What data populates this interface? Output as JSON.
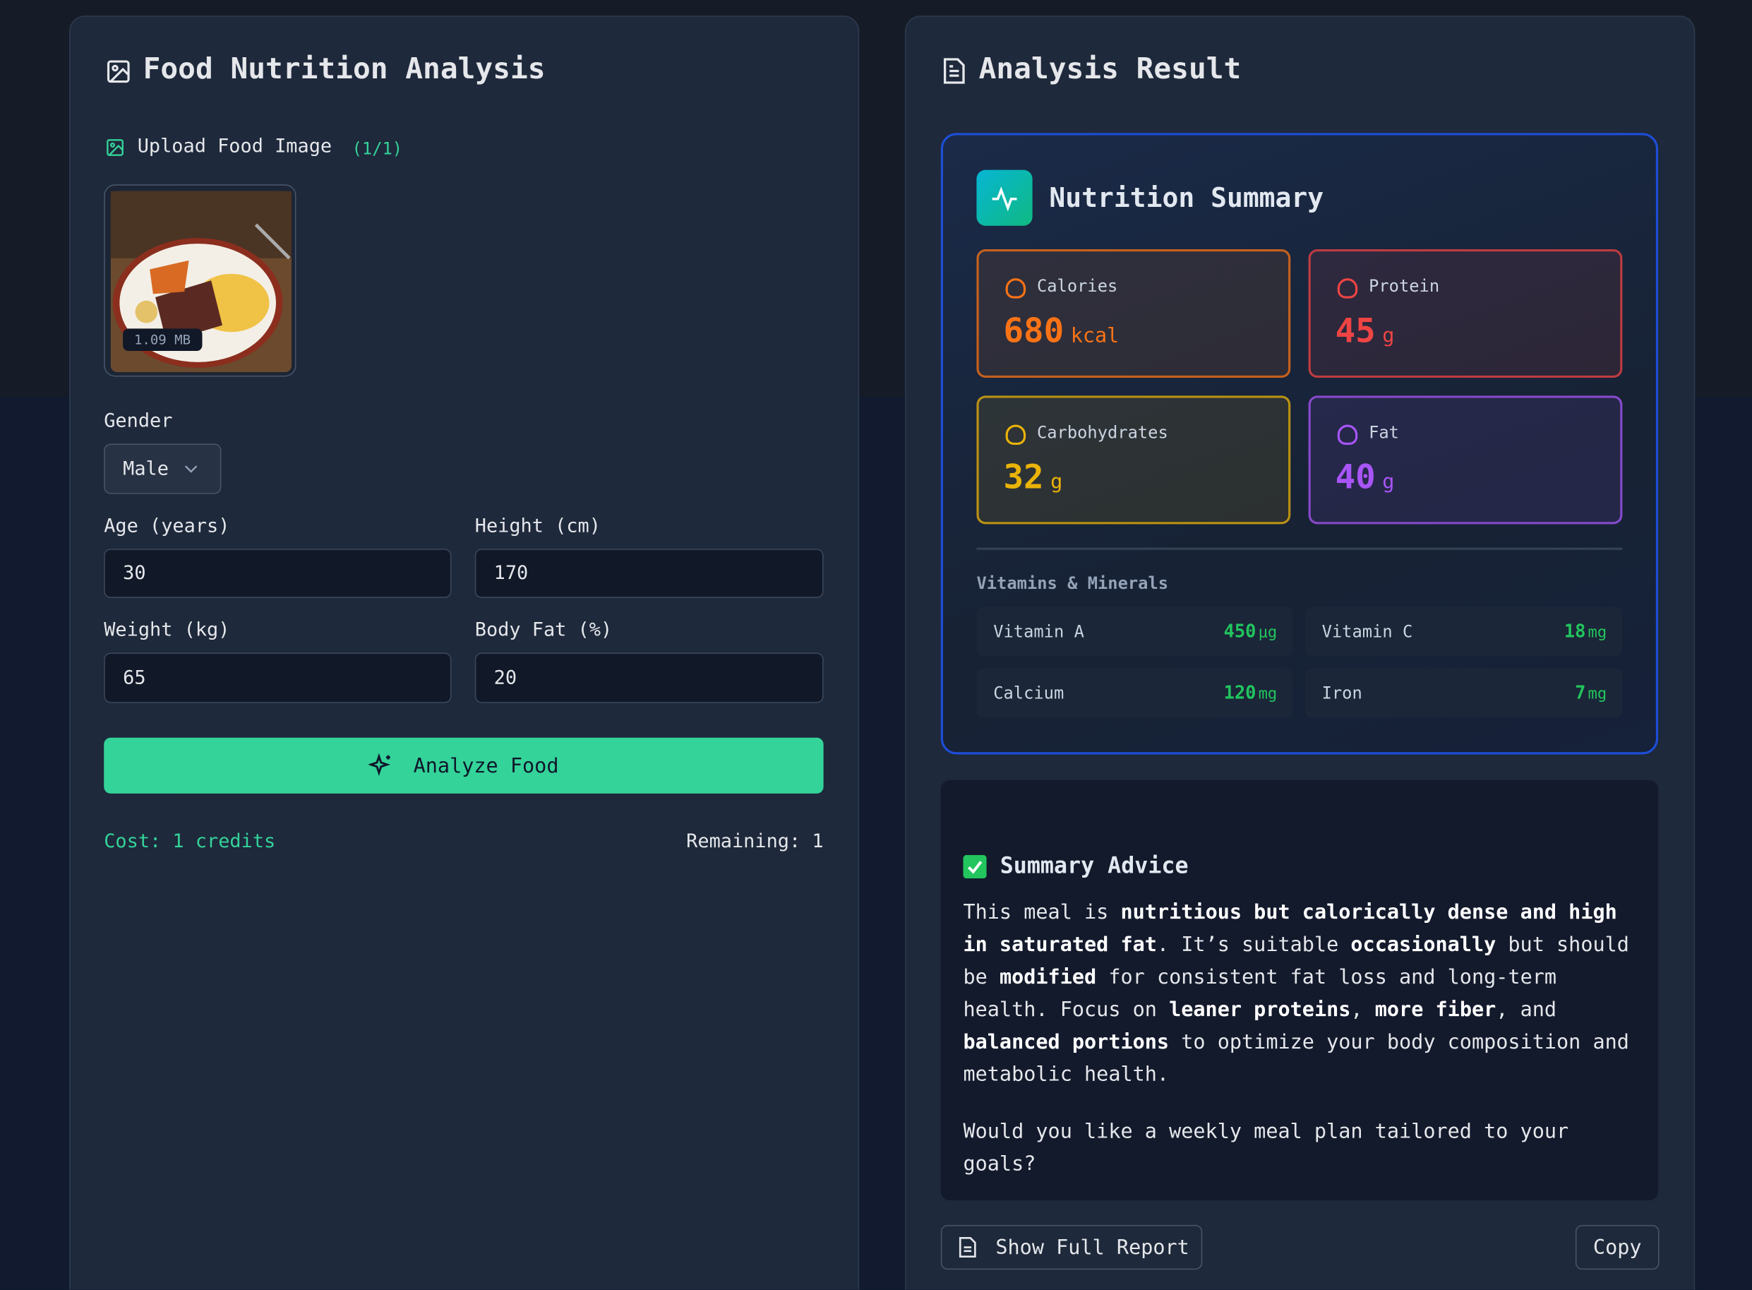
{
  "left": {
    "title": "Food Nutrition Analysis",
    "upload_label": "Upload Food Image",
    "upload_count": "(1/1)",
    "file_size": "1.09 MB",
    "gender_label": "Gender",
    "gender_value": "Male",
    "age_label": "Age (years)",
    "age_value": "30",
    "height_label": "Height (cm)",
    "height_value": "170",
    "weight_label": "Weight (kg)",
    "weight_value": "65",
    "bodyfat_label": "Body Fat (%)",
    "bodyfat_value": "20",
    "analyze_button": "Analyze Food",
    "cost": "Cost: 1 credits",
    "remaining": "Remaining: 1"
  },
  "right": {
    "title": "Analysis Result",
    "summary_title": "Nutrition Summary",
    "cards": [
      {
        "name": "Calories",
        "value": 680,
        "unit": "kcal",
        "color": "#f97316"
      },
      {
        "name": "Protein",
        "value": 45,
        "unit": "g",
        "color": "#ef4444"
      },
      {
        "name": "Carbohydrates",
        "value": 32,
        "unit": "g",
        "color": "#eab308"
      },
      {
        "name": "Fat",
        "value": 40,
        "unit": "g",
        "color": "#a855f7"
      }
    ],
    "vitamins_title": "Vitamins & Minerals",
    "vitamins": [
      {
        "name": "Vitamin A",
        "value": 450,
        "unit": "μg"
      },
      {
        "name": "Vitamin C",
        "value": 18,
        "unit": "mg"
      },
      {
        "name": "Calcium",
        "value": 120,
        "unit": "mg"
      },
      {
        "name": "Iron",
        "value": 7,
        "unit": "mg"
      }
    ],
    "advice_title": "Summary Advice",
    "advice": [
      [
        {
          "text": "This meal is ",
          "bold": false
        },
        {
          "text": "nutritious but calorically dense and high in saturated fat",
          "bold": true
        },
        {
          "text": ". It’s suitable ",
          "bold": false
        },
        {
          "text": "occasionally",
          "bold": true
        },
        {
          "text": " but should be ",
          "bold": false
        },
        {
          "text": "modified",
          "bold": true
        },
        {
          "text": " for consistent fat loss and long-term health. Focus on ",
          "bold": false
        },
        {
          "text": "leaner proteins",
          "bold": true
        },
        {
          "text": ", ",
          "bold": false
        },
        {
          "text": "more fiber",
          "bold": true
        },
        {
          "text": ", and ",
          "bold": false
        },
        {
          "text": "balanced portions",
          "bold": true
        },
        {
          "text": " to optimize your body composition and metabolic health.",
          "bold": false
        }
      ],
      [
        {
          "text": "Would you like a weekly meal plan tailored to your goals?",
          "bold": false
        }
      ]
    ],
    "full_report_button": "Show Full Report",
    "copy_button": "Copy"
  }
}
